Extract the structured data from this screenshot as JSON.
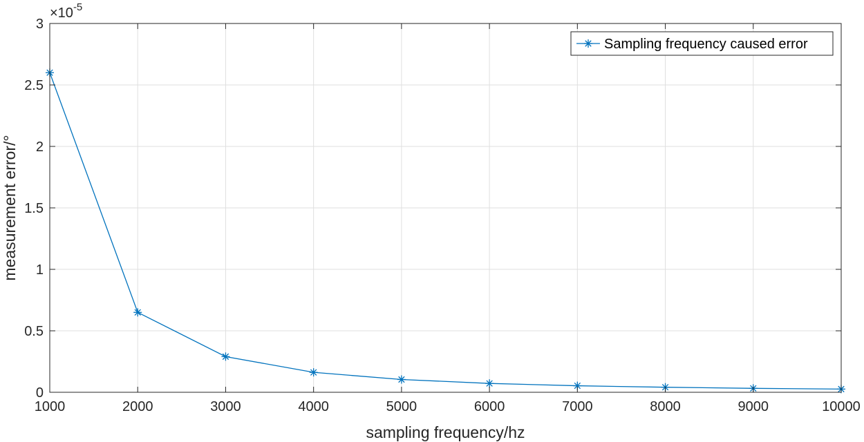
{
  "chart_data": {
    "type": "line",
    "title": "",
    "xlabel": "sampling frequency/hz",
    "ylabel": "measurement error/°",
    "y_exponent_label": "×10",
    "y_exponent_power": "-5",
    "xlim": [
      1000,
      10000
    ],
    "ylim": [
      0,
      3
    ],
    "x_ticks": [
      1000,
      2000,
      3000,
      4000,
      5000,
      6000,
      7000,
      8000,
      9000,
      10000
    ],
    "x_tick_labels": [
      "1000",
      "2000",
      "3000",
      "4000",
      "5000",
      "6000",
      "7000",
      "8000",
      "9000",
      "10000"
    ],
    "y_ticks": [
      0,
      0.5,
      1,
      1.5,
      2,
      2.5,
      3
    ],
    "y_tick_labels": [
      "0",
      "0.5",
      "1",
      "1.5",
      "2",
      "2.5",
      "3"
    ],
    "grid": true,
    "legend_position": "top-right",
    "series": [
      {
        "name": "Sampling frequency caused error",
        "color": "#0072bd",
        "marker": "asterisk",
        "x": [
          1000,
          2000,
          3000,
          4000,
          5000,
          6000,
          7000,
          8000,
          9000,
          10000
        ],
        "values": [
          2.6,
          0.65,
          0.29,
          0.162,
          0.104,
          0.072,
          0.053,
          0.041,
          0.032,
          0.026
        ]
      }
    ]
  }
}
